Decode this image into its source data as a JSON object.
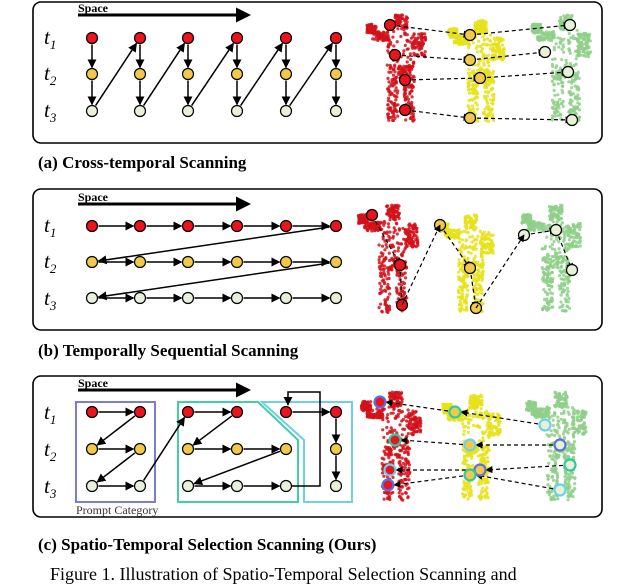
{
  "space_label": "Space",
  "time_labels": [
    "t",
    "t",
    "t"
  ],
  "time_subscripts": [
    "1",
    "2",
    "3"
  ],
  "panels": [
    {
      "caption": "(a) Cross-temporal Scanning"
    },
    {
      "caption": "(b) Temporally Sequential Scanning"
    },
    {
      "caption": "(c) Spatio-Temporal Selection Scanning (Ours)"
    }
  ],
  "prompt_category_label": "Prompt Category",
  "figure_caption": "Figure 1. Illustration of Spatio-Temporal Selection Scanning and",
  "colors": {
    "t1": "#e8141e",
    "t2": "#f2c84b",
    "t3": "#e8f1d8",
    "body_red": "#d4101a",
    "body_yellow": "#e6e21a",
    "body_green": "#8fcf8a",
    "prompt_box": "#7b7bd8",
    "group_teal": "#3fd0a6",
    "group_cyan": "#6fcfe6",
    "ring_blue": "#5b6fe0",
    "ring_teal": "#30c9a0"
  }
}
